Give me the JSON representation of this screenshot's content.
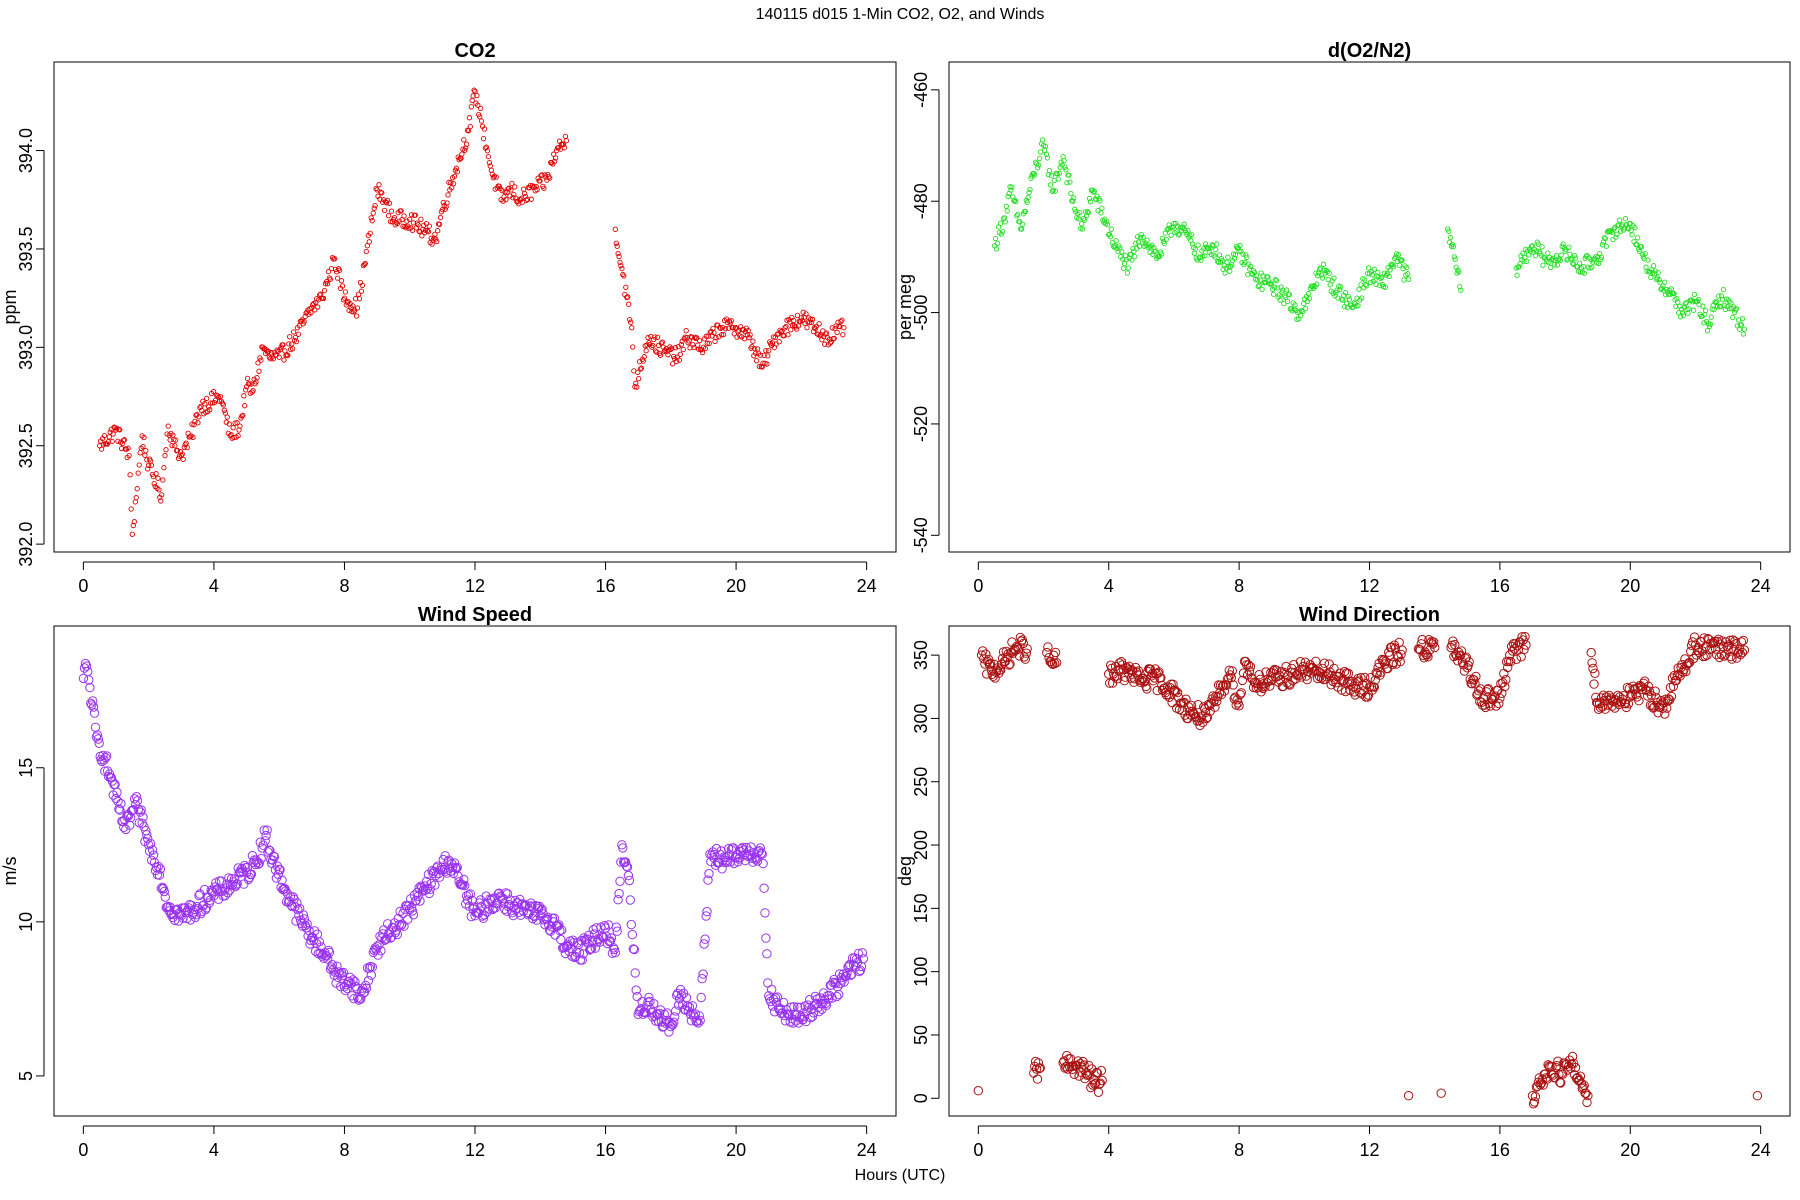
{
  "figure": {
    "title": "140115   d015   1-Min CO2, O2, and Winds",
    "xlabel": "Hours (UTC)"
  },
  "chart_data": [
    {
      "id": "co2",
      "type": "scatter",
      "title": "CO2",
      "ylabel": "ppm",
      "xlabel": "",
      "xlim": [
        -0.9,
        24.9
      ],
      "ylim": [
        391.96,
        394.45
      ],
      "xticks": [
        0,
        4,
        8,
        12,
        16,
        20,
        24
      ],
      "yticks": [
        392.0,
        392.5,
        393.0,
        393.5,
        394.0
      ],
      "ytick_labels": [
        "392.0",
        "392.5",
        "393.0",
        "393.5",
        "394.0"
      ],
      "color": "#e00000",
      "marker": "open-circle-small",
      "grid": false,
      "x": [
        0.5,
        1.0,
        1.4,
        1.5,
        1.8,
        2.0,
        2.4,
        2.5,
        2.6,
        2.8,
        3.0,
        3.3,
        3.6,
        4.2,
        4.5,
        4.8,
        5.0,
        5.2,
        5.5,
        5.7,
        6.0,
        6.5,
        7.0,
        7.3,
        7.6,
        7.7,
        8.0,
        8.4,
        9.0,
        9.2,
        9.5,
        10.0,
        10.4,
        10.8,
        11.0,
        11.4,
        11.8,
        12.0,
        12.2,
        12.5,
        12.8,
        13.1,
        13.4,
        14.2,
        14.5,
        14.8,
        16.3,
        16.5,
        16.8,
        16.9,
        17.3,
        17.8,
        18.2,
        18.5,
        19.0,
        19.5,
        20.0,
        20.4,
        20.8,
        21.2,
        21.5,
        22.0,
        22.4,
        22.8,
        23.3
      ],
      "y": [
        392.5,
        392.58,
        392.45,
        392.05,
        392.55,
        392.4,
        392.25,
        392.45,
        392.6,
        392.5,
        392.45,
        392.55,
        392.7,
        392.75,
        392.55,
        392.6,
        392.8,
        392.78,
        393.0,
        392.95,
        392.95,
        393.05,
        393.2,
        393.25,
        393.4,
        393.45,
        393.25,
        393.2,
        393.8,
        393.75,
        393.65,
        393.65,
        393.6,
        393.55,
        393.7,
        393.9,
        394.1,
        394.3,
        394.15,
        393.9,
        393.75,
        393.8,
        393.75,
        393.85,
        394.0,
        394.05,
        393.6,
        393.4,
        393.1,
        392.8,
        393.05,
        392.98,
        392.95,
        393.05,
        393.0,
        393.1,
        393.1,
        393.05,
        392.9,
        393.05,
        393.1,
        393.15,
        393.1,
        393.05,
        393.1
      ]
    },
    {
      "id": "o2",
      "type": "scatter",
      "title": "d(O2/N2)",
      "ylabel": "per meg",
      "xlabel": "",
      "xlim": [
        -0.9,
        24.9
      ],
      "ylim": [
        -543,
        -455
      ],
      "xticks": [
        0,
        4,
        8,
        12,
        16,
        20,
        24
      ],
      "yticks": [
        -460,
        -480,
        -500,
        -520,
        -540
      ],
      "ytick_labels": [
        "-460",
        "-480",
        "-500",
        "-520",
        "-540"
      ],
      "color": "#22dd22",
      "marker": "open-circle-small",
      "grid": false,
      "x": [
        0.5,
        0.8,
        1.0,
        1.3,
        1.7,
        2.0,
        2.3,
        2.6,
        2.9,
        3.2,
        3.5,
        4.2,
        4.6,
        5.0,
        5.5,
        6.0,
        6.4,
        6.8,
        7.2,
        7.6,
        8.0,
        8.5,
        9.0,
        9.4,
        9.8,
        10.1,
        10.5,
        11.0,
        11.5,
        12.0,
        12.4,
        12.8,
        13.2,
        14.4,
        14.6,
        14.8,
        16.5,
        17.0,
        17.5,
        18.0,
        18.5,
        19.0,
        19.5,
        20.0,
        20.4,
        20.8,
        21.2,
        21.6,
        22.0,
        22.4,
        22.8,
        23.2,
        23.5
      ],
      "y": [
        -488,
        -483,
        -478,
        -485,
        -475,
        -470,
        -478,
        -472,
        -480,
        -485,
        -478,
        -488,
        -492,
        -486,
        -490,
        -484,
        -486,
        -490,
        -488,
        -492,
        -489,
        -494,
        -495,
        -497,
        -500,
        -498,
        -492,
        -496,
        -499,
        -493,
        -495,
        -490,
        -494,
        -485,
        -490,
        -496,
        -492,
        -488,
        -491,
        -489,
        -492,
        -490,
        -485,
        -484,
        -490,
        -494,
        -496,
        -500,
        -498,
        -502,
        -497,
        -500,
        -503
      ]
    },
    {
      "id": "wind-speed",
      "type": "scatter",
      "title": "Wind Speed",
      "ylabel": "m/s",
      "xlabel": "",
      "xlim": [
        -0.9,
        24.9
      ],
      "ylim": [
        3.7,
        19.6
      ],
      "xticks": [
        0,
        4,
        8,
        12,
        16,
        20,
        24
      ],
      "yticks": [
        5,
        10,
        15
      ],
      "ytick_labels": [
        "5",
        "10",
        "15"
      ],
      "color": "#9933ee",
      "marker": "open-circle",
      "grid": false,
      "x": [
        0.0,
        0.1,
        0.2,
        0.4,
        0.6,
        0.8,
        1.0,
        1.3,
        1.6,
        1.8,
        2.0,
        2.3,
        2.6,
        3.0,
        3.4,
        3.8,
        4.2,
        4.6,
        5.0,
        5.3,
        5.6,
        5.8,
        6.2,
        6.6,
        7.0,
        7.4,
        7.8,
        8.2,
        8.5,
        9.0,
        9.5,
        10.0,
        10.4,
        10.8,
        11.2,
        11.6,
        12.0,
        12.4,
        12.8,
        13.2,
        13.6,
        14.0,
        14.4,
        14.8,
        15.2,
        15.6,
        16.0,
        16.3,
        16.5,
        16.7,
        17.0,
        17.3,
        17.6,
        18.0,
        18.3,
        18.6,
        18.9,
        19.2,
        19.6,
        20.0,
        20.4,
        20.8,
        21.0,
        21.3,
        21.6,
        22.0,
        22.4,
        22.8,
        23.2,
        23.6,
        23.9
      ],
      "y": [
        17.9,
        18.3,
        17.6,
        16.0,
        15.4,
        14.8,
        14.0,
        13.0,
        13.8,
        13.2,
        12.5,
        11.8,
        10.5,
        10.2,
        10.4,
        10.8,
        11.0,
        11.3,
        11.6,
        12.0,
        12.8,
        12.0,
        11.0,
        10.2,
        9.5,
        9.0,
        8.2,
        8.0,
        7.5,
        9.2,
        9.8,
        10.4,
        11.0,
        11.5,
        12.0,
        11.2,
        10.2,
        10.6,
        10.8,
        10.5,
        10.3,
        10.2,
        10.0,
        9.2,
        9.0,
        9.4,
        9.8,
        9.0,
        12.5,
        11.5,
        7.0,
        7.4,
        7.0,
        6.6,
        7.8,
        7.0,
        6.8,
        12.2,
        12.0,
        12.1,
        12.3,
        12.2,
        7.6,
        7.2,
        7.0,
        6.9,
        7.3,
        7.6,
        8.0,
        8.6,
        8.8
      ]
    },
    {
      "id": "wind-direction",
      "type": "scatter",
      "title": "Wind Direction",
      "ylabel": "deg",
      "xlabel": "",
      "xlim": [
        -0.9,
        24.9
      ],
      "ylim": [
        -14,
        373
      ],
      "xticks": [
        0,
        4,
        8,
        12,
        16,
        20,
        24
      ],
      "yticks": [
        0,
        50,
        100,
        150,
        200,
        250,
        300,
        350
      ],
      "ytick_labels": [
        "0",
        "50",
        "100",
        "150",
        "200",
        "250",
        "300",
        "350"
      ],
      "color": "#aa1111",
      "marker": "open-circle",
      "grid": false,
      "x": [
        0.0,
        0.1,
        0.2,
        0.4,
        0.6,
        0.8,
        1.0,
        1.2,
        1.5,
        1.7,
        1.9,
        2.1,
        2.2,
        2.4,
        2.6,
        2.8,
        3.0,
        3.3,
        3.6,
        3.8,
        4.0,
        4.3,
        4.6,
        5.0,
        5.4,
        5.8,
        6.2,
        6.6,
        7.0,
        7.4,
        7.7,
        8.0,
        8.1,
        8.2,
        8.5,
        9.0,
        9.5,
        10.0,
        10.5,
        11.0,
        11.5,
        12.0,
        12.5,
        13.0,
        13.2,
        13.5,
        14.0,
        14.2,
        14.5,
        15.0,
        15.5,
        16.0,
        16.3,
        16.8,
        17.0,
        17.3,
        17.6,
        17.9,
        18.2,
        18.5,
        18.7,
        18.8,
        19.0,
        19.5,
        20.0,
        20.5,
        21.0,
        21.5,
        22.0,
        22.5,
        23.0,
        23.5,
        23.9
      ],
      "y": [
        6,
        350,
        343,
        338,
        340,
        345,
        352,
        356,
        355,
        20,
        24,
        352,
        345,
        344,
        28,
        25,
        26,
        20,
        12,
        14,
        335,
        338,
        336,
        330,
        332,
        325,
        312,
        304,
        300,
        320,
        338,
        310,
        330,
        345,
        328,
        330,
        334,
        338,
        336,
        333,
        325,
        325,
        345,
        354,
        2,
        355,
        356,
        4,
        356,
        340,
        316,
        316,
        350,
        358,
        2,
        15,
        25,
        20,
        27,
        12,
        2,
        352,
        312,
        315,
        317,
        322,
        308,
        335,
        358,
        355,
        354,
        354,
        2
      ]
    }
  ]
}
